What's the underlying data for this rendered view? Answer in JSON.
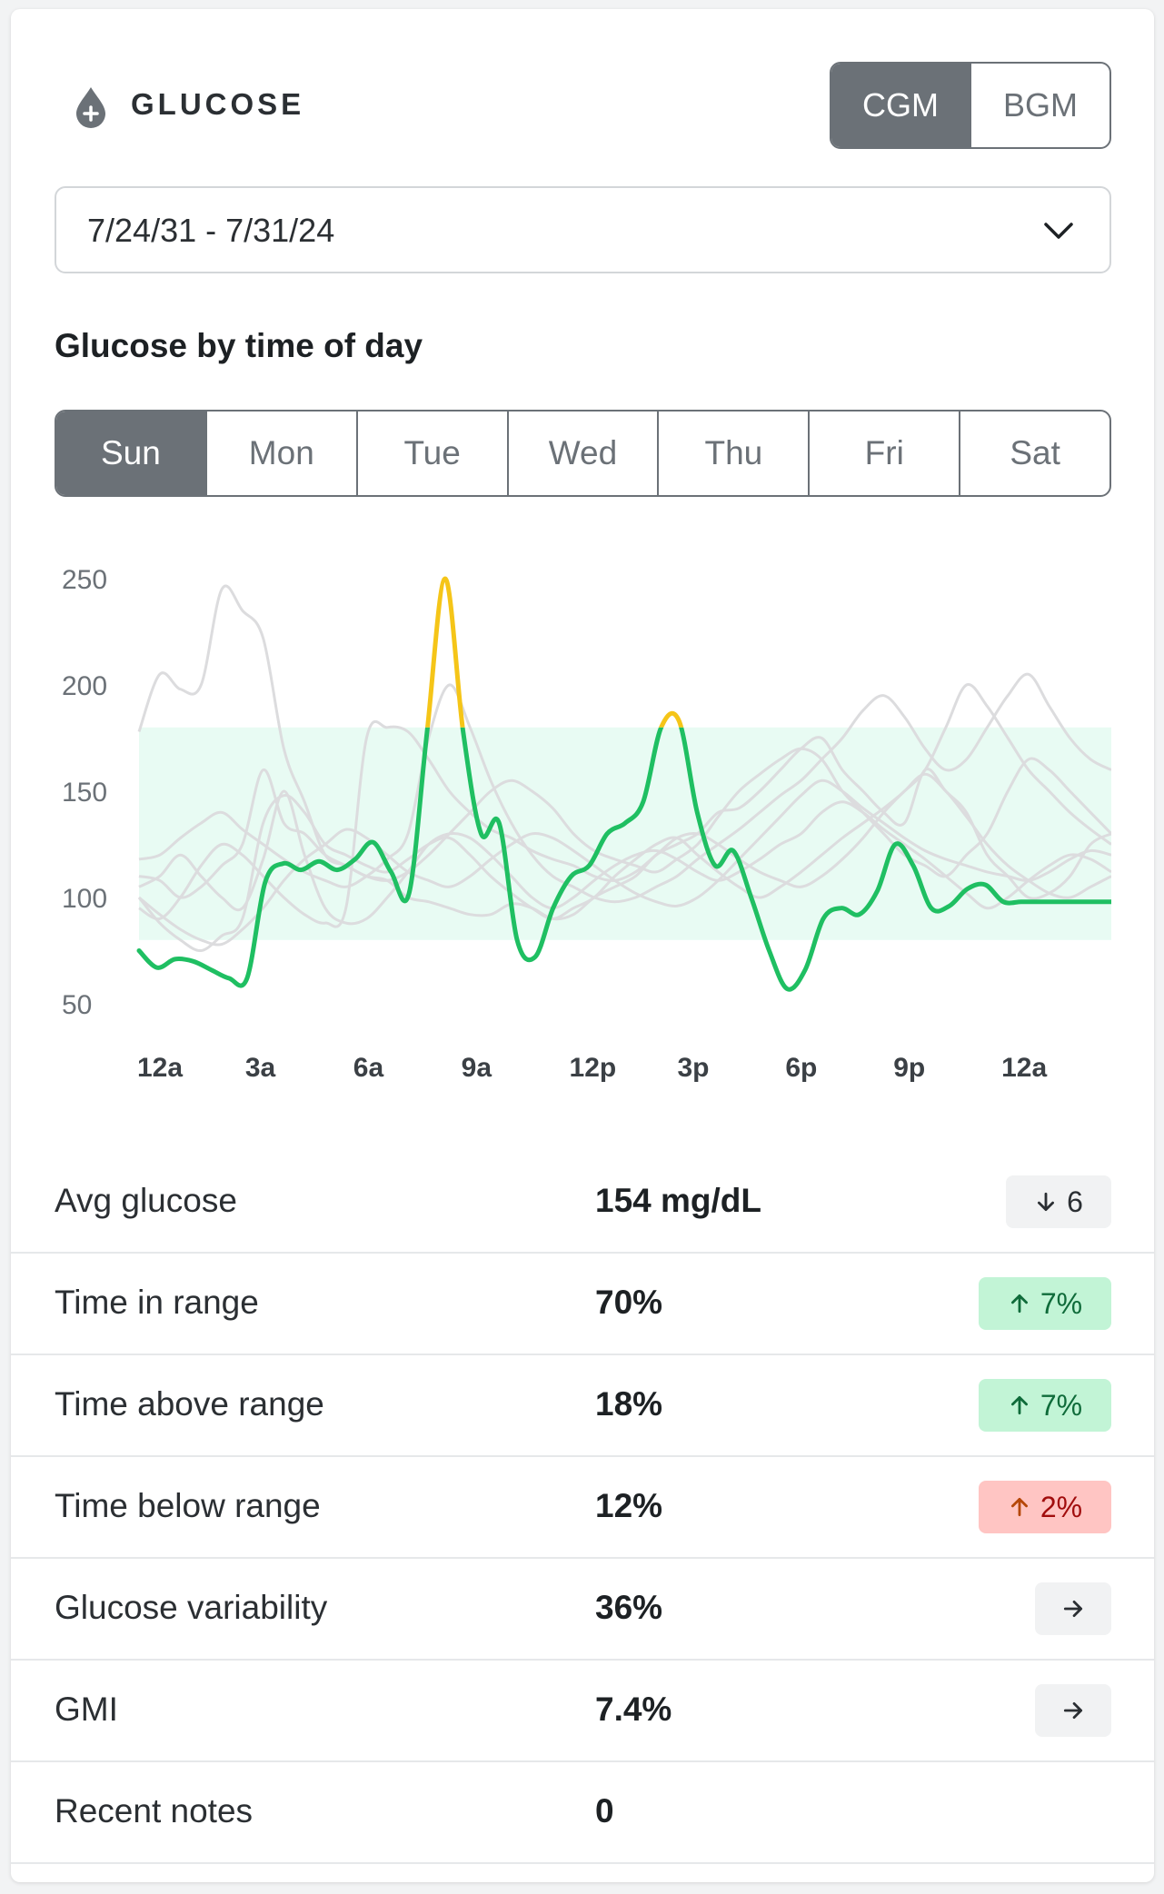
{
  "header": {
    "title": "GLUCOSE",
    "icon": "blood-drop-plus-icon",
    "toggle": {
      "options": [
        "CGM",
        "BGM"
      ],
      "selected": "CGM"
    }
  },
  "date_range": {
    "value": "7/24/31 - 7/31/24",
    "icon": "chevron-down-icon"
  },
  "section_title": "Glucose by time of day",
  "days": {
    "options": [
      "Sun",
      "Mon",
      "Tue",
      "Wed",
      "Thu",
      "Fri",
      "Sat"
    ],
    "selected": "Sun"
  },
  "chart_data": {
    "type": "line",
    "y_ticks": [
      "250",
      "200",
      "150",
      "100",
      "50"
    ],
    "x_ticks": [
      "12a",
      "3a",
      "6a",
      "9a",
      "12p",
      "3p",
      "6p",
      "9p",
      "12a"
    ],
    "ylim": [
      50,
      250
    ],
    "target_range": [
      80,
      180
    ],
    "colors": {
      "in_range": "#1fbf62",
      "above_range": "#f5c518",
      "band": "#e8fbf3",
      "other_days": "#dcdcde"
    },
    "selected_series": {
      "name": "Sun",
      "x_hours": [
        0,
        0.5,
        1,
        1.5,
        2,
        2.5,
        3,
        3.5,
        4,
        4.5,
        5,
        5.5,
        6,
        6.5,
        7,
        7.5,
        8,
        8.5,
        9,
        9.5,
        10,
        10.5,
        11,
        11.5,
        12,
        12.5,
        13,
        13.5,
        14,
        14.5,
        15,
        15.5,
        16,
        16.5,
        17,
        17.5,
        18,
        18.5,
        19,
        19.5,
        20,
        20.5,
        21,
        21.5,
        22,
        22.5,
        23,
        23.5,
        24,
        24.5,
        25,
        25.5,
        26,
        26.5,
        27
      ],
      "values": [
        75,
        67,
        71,
        70,
        66,
        62,
        62,
        107,
        116,
        113,
        117,
        113,
        118,
        126,
        112,
        102,
        178,
        250,
        178,
        130,
        135,
        80,
        72,
        95,
        110,
        115,
        130,
        135,
        145,
        180,
        183,
        140,
        115,
        122,
        100,
        75,
        57,
        66,
        90,
        95,
        92,
        103,
        125,
        115,
        95,
        96,
        104,
        106,
        98,
        98,
        98,
        98,
        98,
        98,
        98
      ]
    },
    "other_series": [
      {
        "values": [
          178,
          205,
          198,
          200,
          245,
          235,
          222,
          170,
          145,
          120,
          115,
          110,
          108,
          100,
          98,
          95,
          92,
          92,
          97,
          95,
          90,
          92,
          100,
          105,
          110,
          120,
          125,
          130,
          140,
          142,
          150,
          160,
          170,
          175,
          160,
          150,
          140,
          135,
          160,
          150,
          140,
          120,
          110,
          100,
          102,
          110,
          125,
          130
        ]
      },
      {
        "values": [
          110,
          108,
          100,
          105,
          115,
          125,
          160,
          135,
          130,
          120,
          115,
          110,
          108,
          112,
          120,
          130,
          140,
          150,
          155,
          150,
          142,
          130,
          122,
          118,
          115,
          112,
          118,
          125,
          138,
          150,
          158,
          165,
          170,
          165,
          150,
          140,
          130,
          120,
          115,
          110,
          120,
          130,
          150,
          165,
          160,
          150,
          140,
          130
        ]
      },
      {
        "values": [
          105,
          110,
          120,
          110,
          100,
          95,
          118,
          150,
          120,
          95,
          88,
          90,
          100,
          112,
          125,
          130,
          128,
          120,
          110,
          100,
          95,
          100,
          108,
          115,
          120,
          122,
          118,
          112,
          108,
          112,
          118,
          125,
          130,
          140,
          145,
          140,
          132,
          125,
          118,
          110,
          102,
          95,
          100,
          108,
          115,
          120,
          118,
          112
        ]
      },
      {
        "values": [
          95,
          90,
          100,
          115,
          125,
          120,
          110,
          100,
          92,
          88,
          95,
          175,
          180,
          178,
          165,
          150,
          140,
          132,
          128,
          122,
          118,
          115,
          110,
          108,
          112,
          120,
          128,
          130,
          125,
          118,
          112,
          108,
          105,
          110,
          118,
          128,
          140,
          150,
          158,
          150,
          138,
          125,
          115,
          108,
          102,
          100,
          105,
          110
        ]
      },
      {
        "values": [
          100,
          88,
          80,
          75,
          82,
          90,
          135,
          148,
          140,
          125,
          120,
          115,
          112,
          118,
          125,
          128,
          120,
          110,
          102,
          95,
          90,
          95,
          100,
          110,
          118,
          125,
          128,
          120,
          112,
          105,
          100,
          105,
          112,
          120,
          128,
          135,
          142,
          150,
          160,
          180,
          200,
          190,
          175,
          160,
          150,
          140,
          132,
          125
        ]
      },
      {
        "values": [
          118,
          120,
          128,
          135,
          140,
          132,
          125,
          118,
          112,
          108,
          105,
          110,
          118,
          130,
          175,
          200,
          180,
          155,
          135,
          120,
          110,
          105,
          100,
          98,
          100,
          105,
          110,
          118,
          125,
          132,
          140,
          148,
          155,
          165,
          175,
          188,
          195,
          185,
          170,
          160,
          165,
          180,
          195,
          205,
          190,
          175,
          165,
          160
        ]
      },
      {
        "values": [
          100,
          92,
          85,
          80,
          78,
          85,
          95,
          108,
          118,
          125,
          132,
          128,
          120,
          112,
          108,
          105,
          110,
          118,
          125,
          130,
          128,
          122,
          115,
          108,
          102,
          98,
          96,
          100,
          108,
          118,
          128,
          138,
          148,
          155,
          150,
          142,
          135,
          128,
          122,
          118,
          115,
          112,
          110,
          108,
          112,
          118,
          122,
          120
        ]
      }
    ]
  },
  "stats": [
    {
      "label": "Avg glucose",
      "value": "154 mg/dL",
      "badge": {
        "kind": "neutral",
        "icon": "arrow-down-icon",
        "text": "6"
      }
    },
    {
      "label": "Time in range",
      "value": "70%",
      "badge": {
        "kind": "good",
        "icon": "arrow-up-icon",
        "text": "7%"
      }
    },
    {
      "label": "Time above range",
      "value": "18%",
      "badge": {
        "kind": "good",
        "icon": "arrow-up-icon",
        "text": "7%"
      }
    },
    {
      "label": "Time below range",
      "value": "12%",
      "badge": {
        "kind": "bad",
        "icon": "arrow-up-icon",
        "text": "2%"
      }
    },
    {
      "label": "Glucose variability",
      "value": "36%",
      "badge": {
        "kind": "arrow",
        "icon": "arrow-right-icon",
        "text": ""
      }
    },
    {
      "label": "GMI",
      "value": "7.4%",
      "badge": {
        "kind": "arrow",
        "icon": "arrow-right-icon",
        "text": ""
      }
    },
    {
      "label": "Recent notes",
      "value": "0",
      "badge": null
    }
  ]
}
